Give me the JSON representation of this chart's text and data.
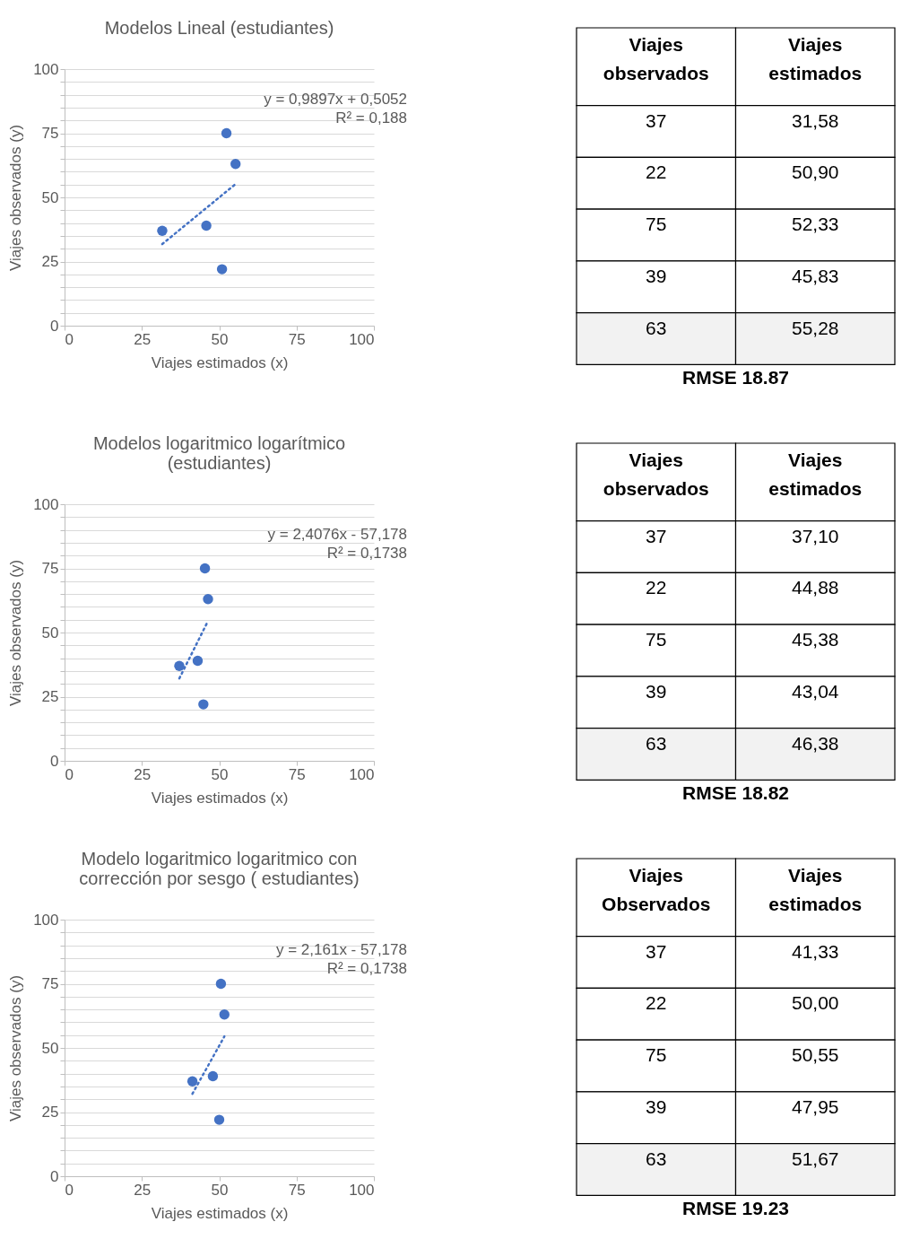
{
  "chart_data": [
    {
      "type": "scatter",
      "title": "Modelos Lineal (estudiantes)",
      "xlabel": "Viajes estimados (x)",
      "ylabel": "Viajes observados (y)",
      "xlim": [
        0,
        100
      ],
      "ylim": [
        0,
        100
      ],
      "xticks": [
        0,
        25,
        50,
        75,
        100
      ],
      "yticks": [
        0,
        {
          "value": 5,
          "label": null
        },
        {
          "value": 10,
          "label": null
        },
        {
          "value": 15,
          "label": null
        },
        {
          "value": 20,
          "label": null
        },
        25,
        {
          "value": 30,
          "label": null
        },
        {
          "value": 35,
          "label": null
        },
        {
          "value": 40,
          "label": null
        },
        {
          "value": 45,
          "label": null
        },
        50,
        {
          "value": 55,
          "label": null
        },
        {
          "value": 60,
          "label": null
        },
        {
          "value": 65,
          "label": null
        },
        {
          "value": 70,
          "label": null
        },
        75,
        {
          "value": 80,
          "label": null
        },
        {
          "value": 85,
          "label": null
        },
        {
          "value": 90,
          "label": null
        },
        {
          "value": 95,
          "label": null
        },
        100
      ],
      "grid": "y",
      "line_style": "dotted",
      "series": [
        {
          "type": "scatter",
          "marker": "circle",
          "color": "#4472c4",
          "x": [
            31.58,
            50.9,
            52.33,
            45.83,
            55.28
          ],
          "values": [
            37,
            22,
            75,
            39,
            63
          ]
        },
        {
          "type": "line",
          "marker": "none",
          "color": "#4472c4",
          "x": [
            31.58,
            55.28
          ],
          "values": [
            31.8,
            55.2
          ]
        }
      ],
      "annotations": [
        "y = 0,9897x + 0,5052",
        "R² = 0,188"
      ]
    },
    {
      "type": "other",
      "categories": [
        "Viajes observados",
        "Viajes estimados"
      ],
      "annotations": [
        "37",
        "31,58",
        "22",
        "50,90",
        "75",
        "52,33",
        "39",
        "45,83",
        "63",
        "55,28",
        "RMSE 18.87"
      ]
    },
    {
      "type": "scatter",
      "title": "Modelos logaritmico logarítmico (estudiantes)",
      "xlabel": "Viajes estimados (x)",
      "ylabel": "Viajes observados (y)",
      "xlim": [
        0,
        100
      ],
      "ylim": [
        0,
        100
      ],
      "xticks": [
        0,
        25,
        50,
        75,
        100
      ],
      "yticks": [
        0,
        {
          "value": 5,
          "label": null
        },
        {
          "value": 10,
          "label": null
        },
        {
          "value": 15,
          "label": null
        },
        {
          "value": 20,
          "label": null
        },
        25,
        {
          "value": 30,
          "label": null
        },
        {
          "value": 35,
          "label": null
        },
        {
          "value": 40,
          "label": null
        },
        {
          "value": 45,
          "label": null
        },
        50,
        {
          "value": 55,
          "label": null
        },
        {
          "value": 60,
          "label": null
        },
        {
          "value": 65,
          "label": null
        },
        {
          "value": 70,
          "label": null
        },
        75,
        {
          "value": 80,
          "label": null
        },
        {
          "value": 85,
          "label": null
        },
        {
          "value": 90,
          "label": null
        },
        {
          "value": 95,
          "label": null
        },
        100
      ],
      "grid": "y",
      "line_style": "dotted",
      "series": [
        {
          "type": "scatter",
          "marker": "circle",
          "color": "#4472c4",
          "x": [
            37.1,
            44.88,
            45.38,
            43.04,
            46.38
          ],
          "values": [
            37,
            22,
            75,
            39,
            63
          ]
        },
        {
          "type": "line",
          "marker": "none",
          "color": "#4472c4",
          "x": [
            37.1,
            46.38
          ],
          "values": [
            32.1,
            54.5
          ]
        }
      ],
      "annotations": [
        "y = 2,4076x - 57,178",
        "R² = 0,1738"
      ]
    },
    {
      "type": "other",
      "categories": [
        "Viajes observados",
        "Viajes estimados"
      ],
      "annotations": [
        "37",
        "37,10",
        "22",
        "44,88",
        "75",
        "45,38",
        "39",
        "43,04",
        "63",
        "46,38",
        "RMSE 18.82"
      ]
    },
    {
      "type": "scatter",
      "title": "Modelo logaritmico logaritmico con corrección por sesgo ( estudiantes)",
      "xlabel": "Viajes estimados (x)",
      "ylabel": "Viajes observados (y)",
      "xlim": [
        0,
        100
      ],
      "ylim": [
        0,
        100
      ],
      "xticks": [
        0,
        25,
        50,
        75,
        100
      ],
      "yticks": [
        0,
        {
          "value": 5,
          "label": null
        },
        {
          "value": 10,
          "label": null
        },
        {
          "value": 15,
          "label": null
        },
        {
          "value": 20,
          "label": null
        },
        25,
        {
          "value": 30,
          "label": null
        },
        {
          "value": 35,
          "label": null
        },
        {
          "value": 40,
          "label": null
        },
        {
          "value": 45,
          "label": null
        },
        50,
        {
          "value": 55,
          "label": null
        },
        {
          "value": 60,
          "label": null
        },
        {
          "value": 65,
          "label": null
        },
        {
          "value": 70,
          "label": null
        },
        75,
        {
          "value": 80,
          "label": null
        },
        {
          "value": 85,
          "label": null
        },
        {
          "value": 90,
          "label": null
        },
        {
          "value": 95,
          "label": null
        },
        100
      ],
      "grid": "y",
      "line_style": "dotted",
      "series": [
        {
          "type": "scatter",
          "marker": "circle",
          "color": "#4472c4",
          "x": [
            41.33,
            50.0,
            50.55,
            47.95,
            51.67
          ],
          "values": [
            37,
            22,
            75,
            39,
            63
          ]
        },
        {
          "type": "line",
          "marker": "none",
          "color": "#4472c4",
          "x": [
            41.33,
            51.67
          ],
          "values": [
            32.1,
            54.5
          ]
        }
      ],
      "annotations": [
        "y = 2,161x - 57,178",
        "R² = 0,1738"
      ]
    },
    {
      "type": "other",
      "categories": [
        "Viajes Observados",
        "Viajes estimados"
      ],
      "annotations": [
        "37",
        "41,33",
        "22",
        "50,00",
        "75",
        "50,55",
        "39",
        "47,95",
        "63",
        "51,67",
        "RMSE 19.23"
      ]
    }
  ]
}
